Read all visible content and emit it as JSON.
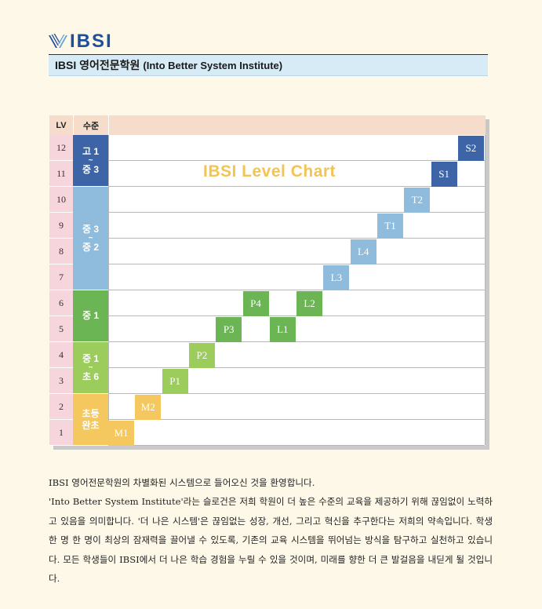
{
  "brand": {
    "logo_text": "IBSI"
  },
  "header": {
    "title": "IBSI 영어전문학원",
    "subtitle": "(Into Better System Institute)"
  },
  "chart_data": {
    "type": "table",
    "title": "IBSI  Level Chart",
    "headers": {
      "lv": "LV",
      "grade": "수준"
    },
    "rows": [
      "1",
      "2",
      "3",
      "4",
      "5",
      "6",
      "7",
      "8",
      "9",
      "10",
      "11",
      "12"
    ],
    "bands": [
      {
        "lines": [
          "고 1",
          "~",
          "중 3"
        ],
        "rows": [
          11,
          12
        ],
        "color": "#3c64a6"
      },
      {
        "lines": [
          "중 3",
          "~",
          "중 2"
        ],
        "rows": [
          7,
          10
        ],
        "color": "#8fbcdd"
      },
      {
        "lines": [
          "중 1"
        ],
        "rows": [
          5,
          6
        ],
        "color": "#6bb554"
      },
      {
        "lines": [
          "중 1",
          "~",
          "초 6"
        ],
        "rows": [
          3,
          4
        ],
        "color": "#9ccc5b"
      },
      {
        "lines": [
          "초등",
          "완초"
        ],
        "rows": [
          1,
          2
        ],
        "color": "#f5c75f"
      }
    ],
    "levels": [
      {
        "label": "M1",
        "row": 1,
        "col": 1,
        "color": "#f5c75f"
      },
      {
        "label": "M2",
        "row": 2,
        "col": 2,
        "color": "#f5c75f"
      },
      {
        "label": "P1",
        "row": 3,
        "col": 3,
        "color": "#9ccc5b"
      },
      {
        "label": "P2",
        "row": 4,
        "col": 4,
        "color": "#9ccc5b"
      },
      {
        "label": "P3",
        "row": 5,
        "col": 5,
        "color": "#6bb554"
      },
      {
        "label": "P4",
        "row": 6,
        "col": 6,
        "color": "#6bb554"
      },
      {
        "label": "L1",
        "row": 5,
        "col": 7,
        "color": "#6bb554"
      },
      {
        "label": "L2",
        "row": 6,
        "col": 8,
        "color": "#6bb554"
      },
      {
        "label": "L3",
        "row": 7,
        "col": 9,
        "color": "#8fbcdd"
      },
      {
        "label": "L4",
        "row": 8,
        "col": 10,
        "color": "#8fbcdd"
      },
      {
        "label": "T1",
        "row": 9,
        "col": 11,
        "color": "#8fbcdd"
      },
      {
        "label": "T2",
        "row": 10,
        "col": 12,
        "color": "#8fbcdd"
      },
      {
        "label": "S1",
        "row": 11,
        "col": 13,
        "color": "#3c64a6"
      },
      {
        "label": "S2",
        "row": 12,
        "col": 14,
        "color": "#3c64a6"
      }
    ]
  },
  "body": {
    "paragraphs": [
      "IBSI 영어전문학원의 차별화된 시스템으로 들어오신 것을 환영합니다.",
      "'Into Better System Institute'라는 슬로건은 저희 학원이 더 높은 수준의 교육을 제공하기 위해 끊임없이 노력하고 있음을 의미합니다. '더 나은 시스템'은 끊임없는 성장, 개선, 그리고 혁신을 추구한다는 저희의 약속입니다. 학생 한 명 한 명이 최상의 잠재력을 끌어낼 수 있도록, 기존의 교육 시스템을 뛰어넘는 방식을 탐구하고 실천하고 있습니다. 모든 학생들이 IBSI에서 더 나은 학습 경험을 누릴 수 있을 것이며, 미래를 향한 더 큰 발걸음을 내딛게 될 것입니다."
    ]
  }
}
